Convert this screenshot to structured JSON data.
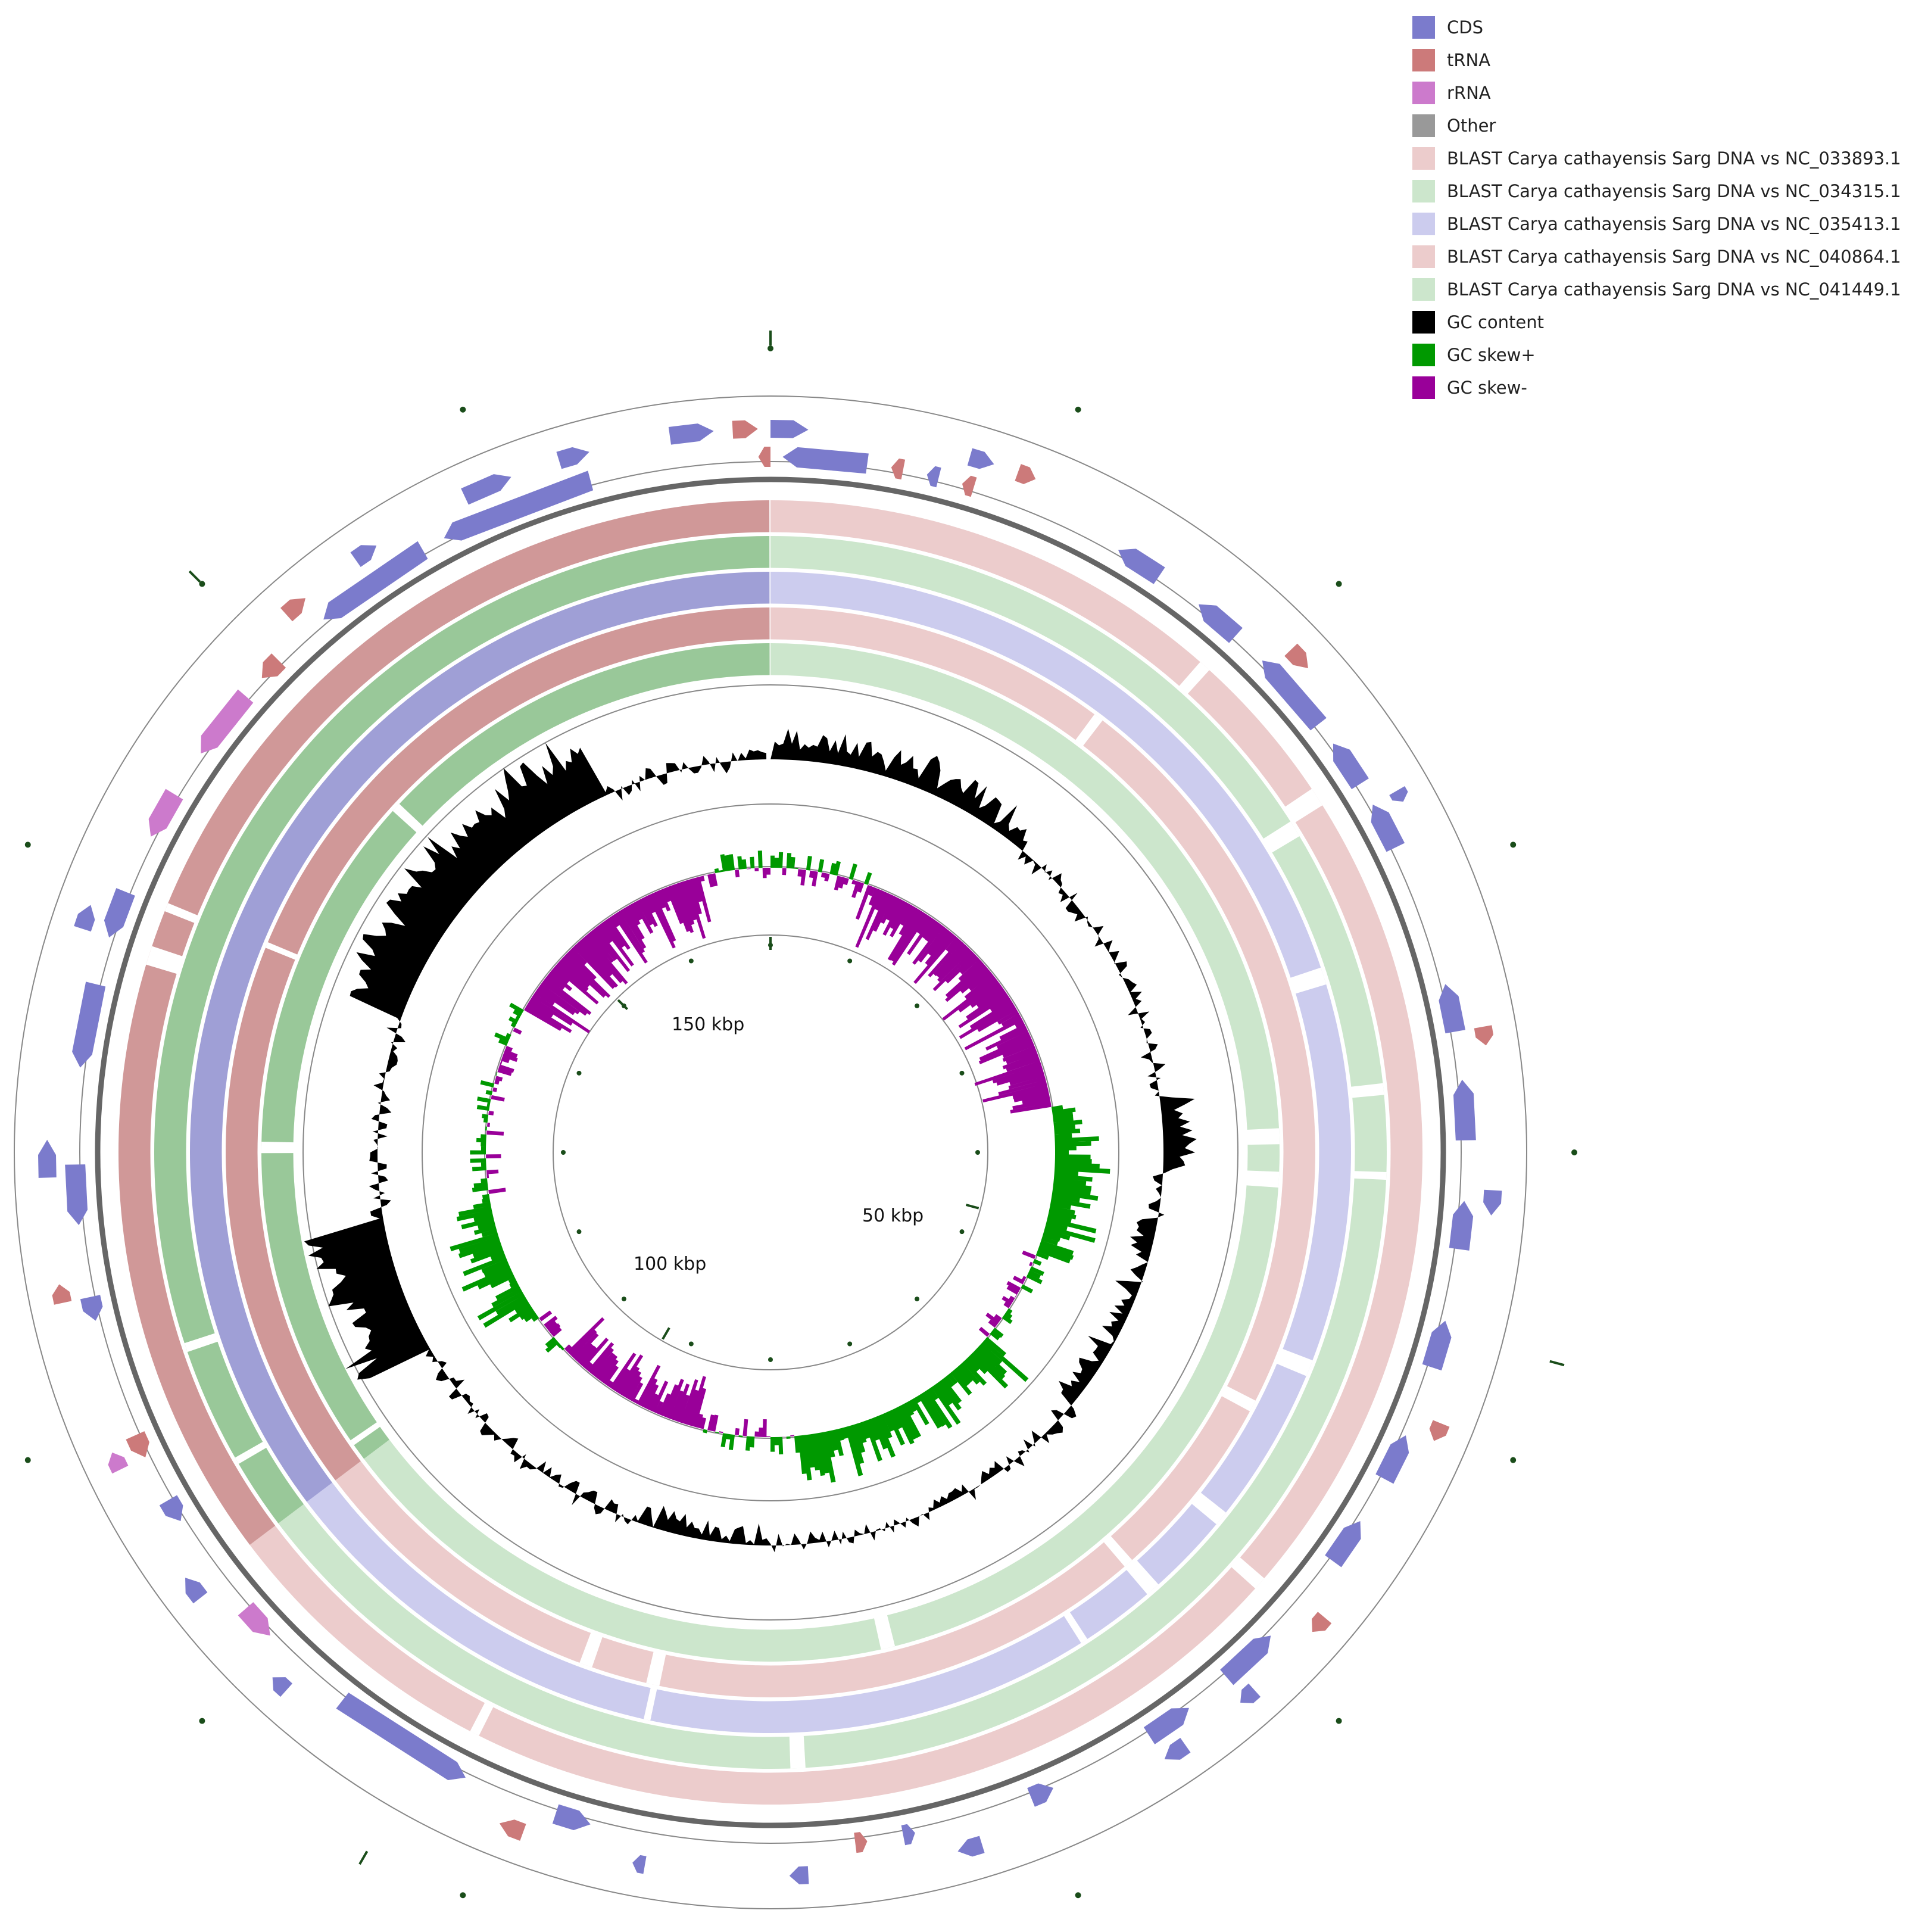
{
  "legend": [
    {
      "label": "CDS",
      "color": "#7b7bcc"
    },
    {
      "label": "tRNA",
      "color": "#cc7a7a"
    },
    {
      "label": "rRNA",
      "color": "#cc7acc"
    },
    {
      "label": "Other",
      "color": "#999999"
    },
    {
      "label": "BLAST Carya cathayensis Sarg DNA vs NC_033893.1",
      "color": "#eccccc"
    },
    {
      "label": "BLAST Carya cathayensis Sarg DNA vs NC_034315.1",
      "color": "#cce6cc"
    },
    {
      "label": "BLAST Carya cathayensis Sarg DNA vs NC_035413.1",
      "color": "#ccccee"
    },
    {
      "label": "BLAST Carya cathayensis Sarg DNA vs NC_040864.1",
      "color": "#eccccc"
    },
    {
      "label": "BLAST Carya cathayensis Sarg DNA vs NC_041449.1",
      "color": "#cce6cc"
    },
    {
      "label": "GC content",
      "color": "#000000"
    },
    {
      "label": "GC skew+",
      "color": "#009900"
    },
    {
      "label": "GC skew-",
      "color": "#990099"
    }
  ],
  "scale_labels": {
    "label_50": "50 kbp",
    "label_100": "100 kbp",
    "label_150": "150 kbp"
  },
  "colors": {
    "cds": "#7b7bcc",
    "trna": "#cc7a7a",
    "rrna": "#cc7acc",
    "backbone": "#666666",
    "ring_line": "#888888",
    "gc_content": "#000000",
    "skew_plus": "#009900",
    "skew_minus": "#990099",
    "tick": "#1a4d1a"
  },
  "blast_rings": [
    {
      "subject": "NC_033893.1",
      "light": "#eccccc",
      "dark": "#d09898"
    },
    {
      "subject": "NC_034315.1",
      "light": "#cce6cc",
      "dark": "#99c899"
    },
    {
      "subject": "NC_035413.1",
      "light": "#ccccee",
      "dark": "#9f9fd6"
    },
    {
      "subject": "NC_040864.1",
      "light": "#eccccc",
      "dark": "#d09898"
    },
    {
      "subject": "NC_041449.1",
      "light": "#cce6cc",
      "dark": "#99c899"
    }
  ]
}
